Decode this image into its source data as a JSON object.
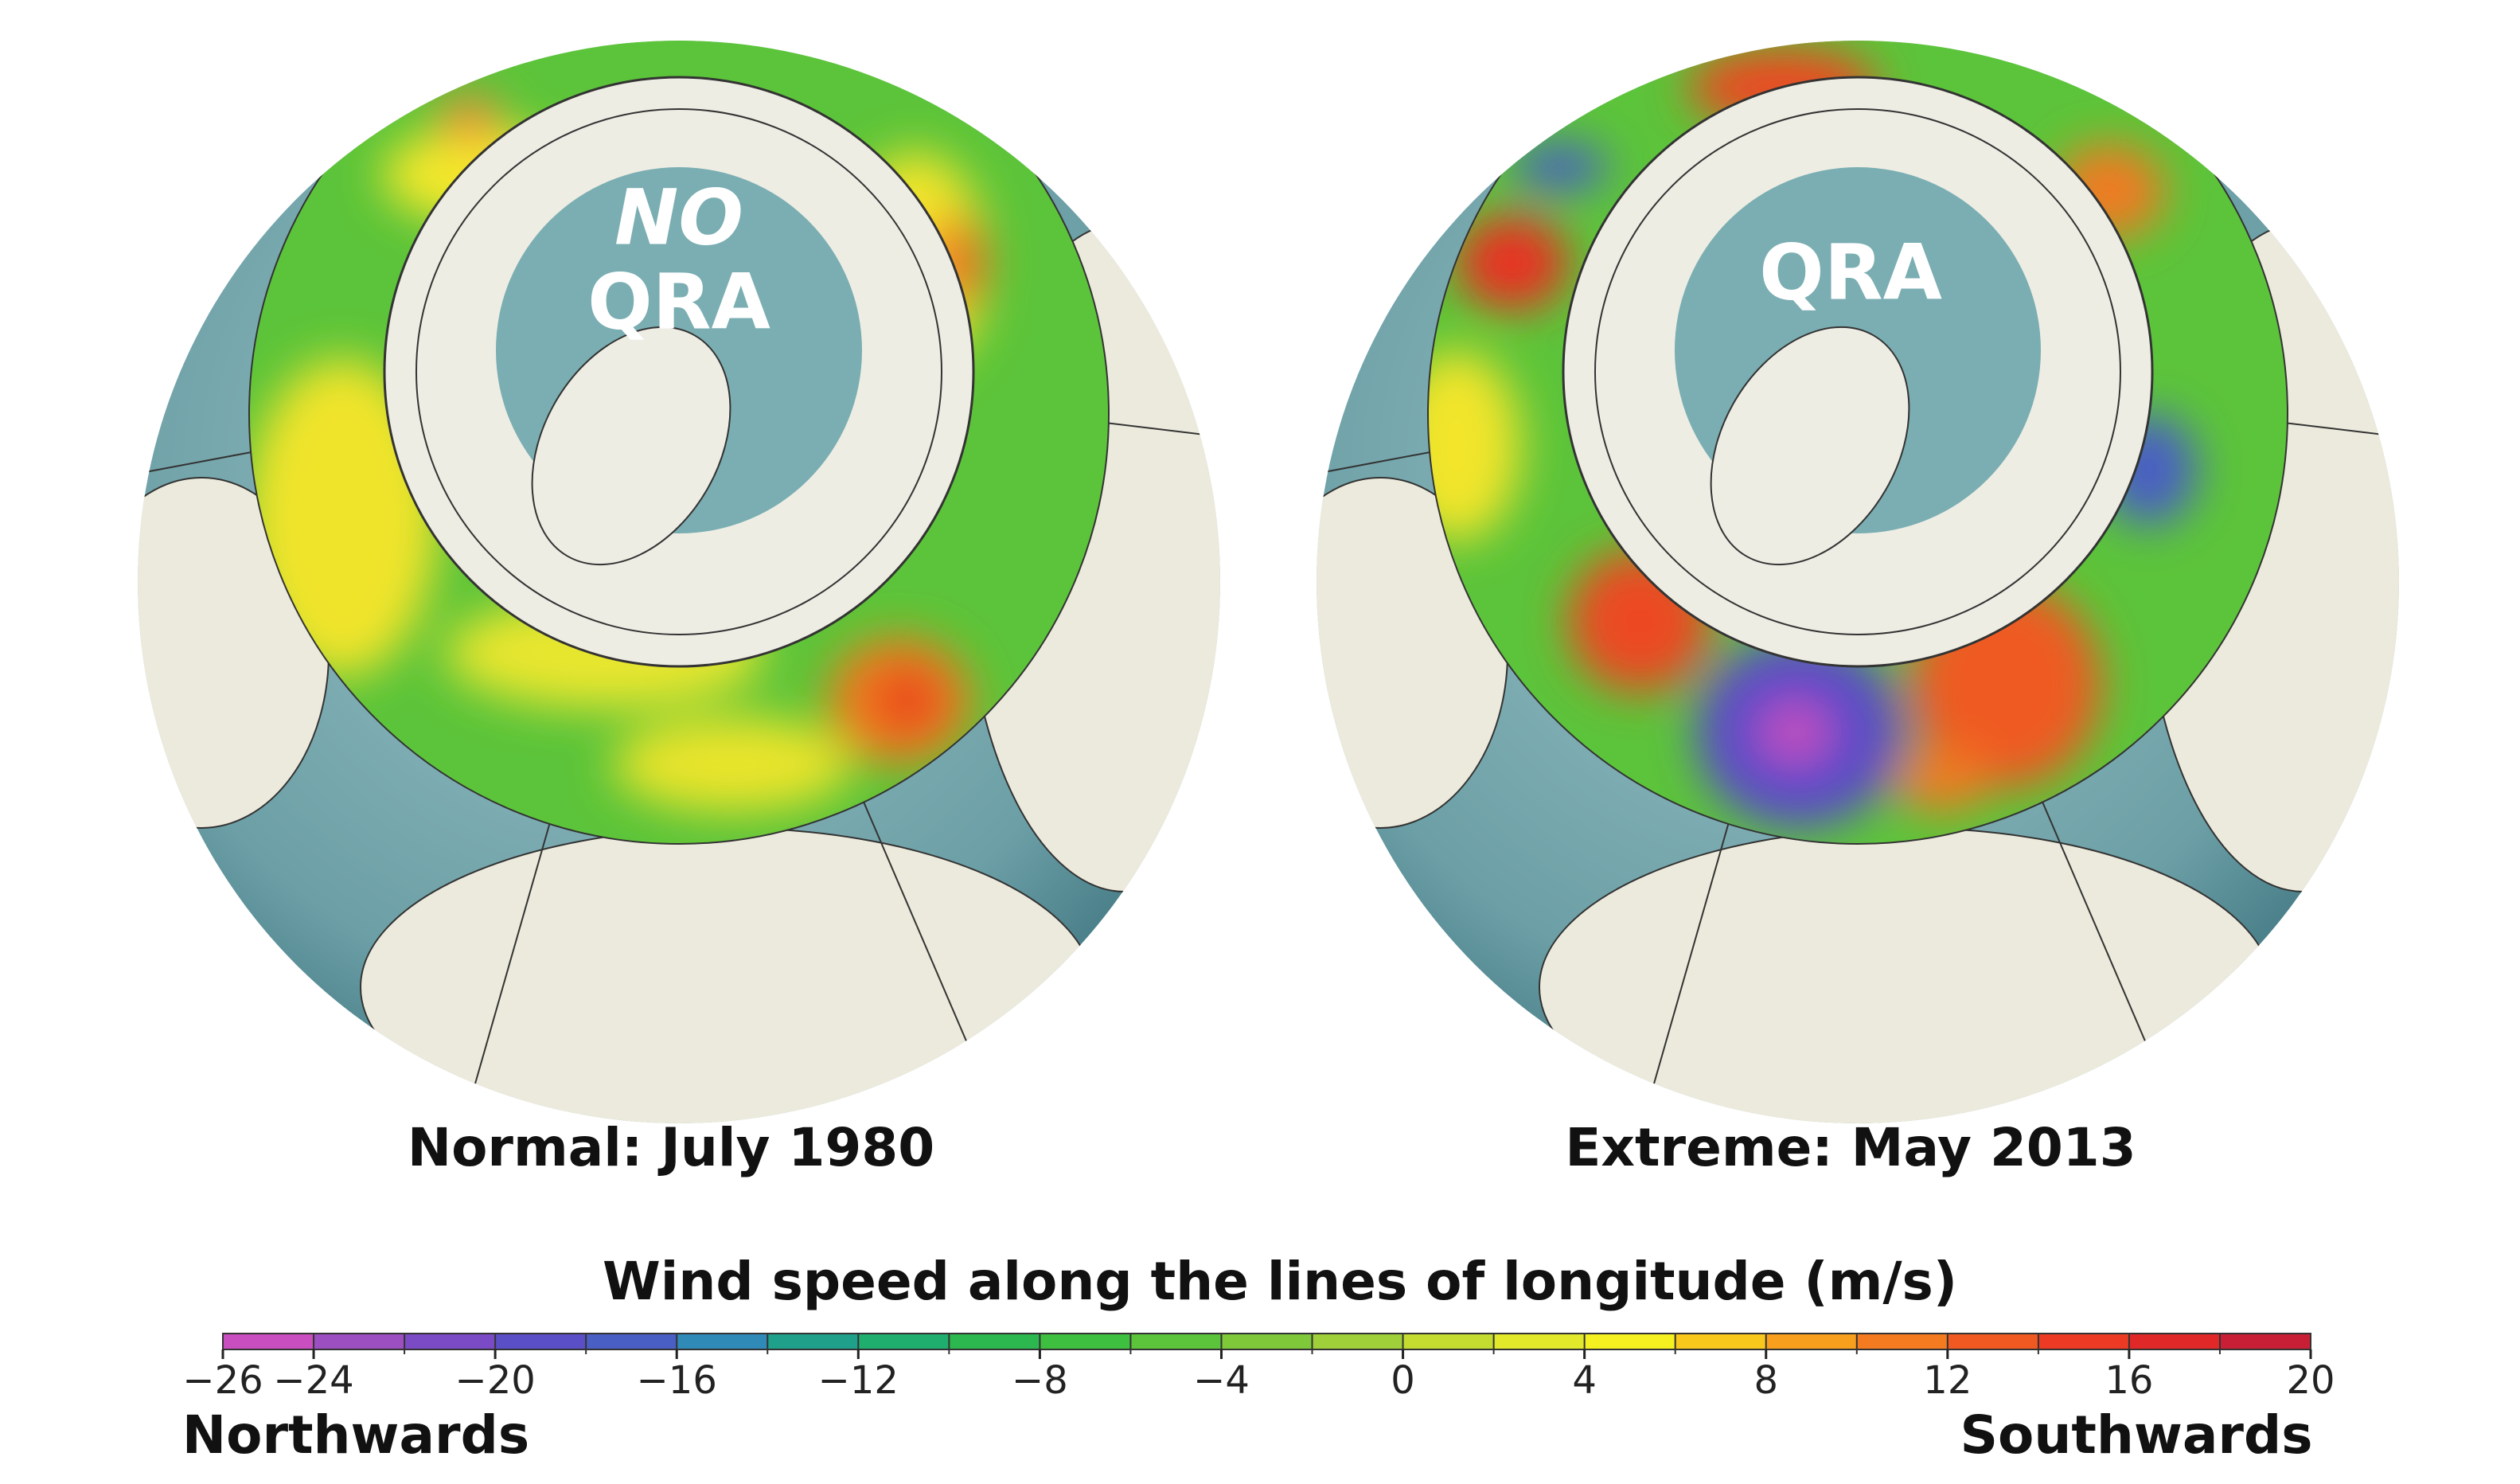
{
  "panels": [
    {
      "title": "Normal: July 1980",
      "label_top": "NO",
      "label": "QRA"
    },
    {
      "title": "Extreme: May 2013",
      "label": "QRA"
    }
  ],
  "colorbar": {
    "title": "Wind speed along the lines of longitude (m/s)",
    "bins": [
      -26,
      -24,
      -22,
      -20,
      -18,
      -16,
      -14,
      -12,
      -10,
      -8,
      -6,
      -4,
      -2,
      0,
      2,
      4,
      6,
      8,
      10,
      12,
      14,
      16,
      18,
      20
    ],
    "colors": [
      "#c94fc0",
      "#9b4fc0",
      "#7a4bc4",
      "#5b4fc8",
      "#4a5fc4",
      "#2f8ab8",
      "#1fa08a",
      "#1fae6e",
      "#2cb84f",
      "#3fbf3f",
      "#5cc43a",
      "#7ec83a",
      "#9fd03a",
      "#c4dc30",
      "#e2e82a",
      "#f5f020",
      "#f8c81c",
      "#f8a01e",
      "#f47b20",
      "#f05a22",
      "#ec3a24",
      "#e02828",
      "#c81e36"
    ],
    "xlim": [
      -26,
      20
    ],
    "xticks": [
      {
        "value": -26,
        "label": "−26"
      },
      {
        "value": -24,
        "label": "−24"
      },
      {
        "value": -20,
        "label": "−20"
      },
      {
        "value": -16,
        "label": "−16"
      },
      {
        "value": -12,
        "label": "−12"
      },
      {
        "value": -8,
        "label": "−8"
      },
      {
        "value": -4,
        "label": "−4"
      },
      0,
      4,
      8,
      12,
      16,
      20
    ],
    "left_label": "Northwards",
    "right_label": "Southwards"
  }
}
